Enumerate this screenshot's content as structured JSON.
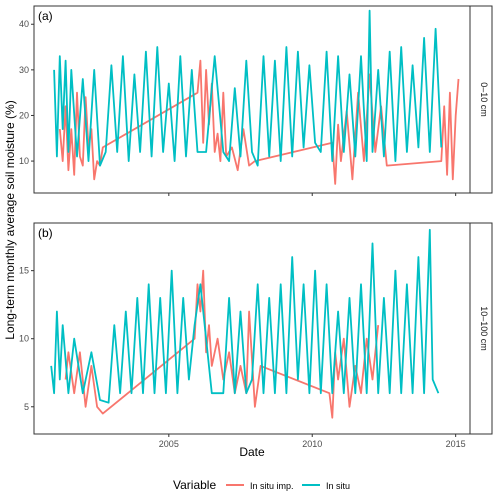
{
  "colors": {
    "imputed": "#F8766D",
    "insitu": "#00BFC4",
    "axis_text": "#4d4d4d",
    "strip_bg": "#ffffff"
  },
  "figure": {
    "xlabel": "Date",
    "ylabel": "Long-term monthly average soil moisture (%)",
    "legend_title": "Variable",
    "legend": [
      {
        "label": "In situ imp.",
        "color_key": "imputed"
      },
      {
        "label": "In situ",
        "color_key": "insitu"
      }
    ]
  },
  "chart_data": [
    {
      "type": "line",
      "panel_label": "(a)",
      "strip_label": "0–10 cm",
      "xlim": [
        2000.3,
        2015.5
      ],
      "ylim": [
        3,
        44
      ],
      "x_ticks": [
        2005,
        2010,
        2015
      ],
      "y_ticks": [
        10,
        20,
        30,
        40
      ],
      "series": [
        {
          "name": "In situ imp.",
          "color_key": "imputed",
          "x": [
            2001.2,
            2001.3,
            2001.4,
            2001.5,
            2001.6,
            2001.7,
            2001.8,
            2001.9,
            2002.0,
            2002.1,
            2002.2,
            2002.3,
            2002.4,
            2002.5,
            2002.6,
            2002.7,
            2006.0,
            2006.1,
            2006.2,
            2006.3,
            2006.4,
            2006.5,
            2006.6,
            2006.7,
            2006.8,
            2006.9,
            2007.0,
            2007.2,
            2007.4,
            2007.6,
            2007.8,
            2008.0,
            2010.7,
            2010.8,
            2010.9,
            2011.0,
            2011.2,
            2011.4,
            2011.6,
            2011.8,
            2012.0,
            2012.2,
            2012.4,
            2012.6,
            2014.5,
            2014.6,
            2014.7,
            2014.8,
            2014.9,
            2015.0,
            2015.1
          ],
          "y": [
            17,
            10,
            22,
            8,
            17,
            7,
            25,
            11,
            9,
            24,
            13,
            17,
            6,
            10,
            9,
            13,
            25,
            32,
            14,
            30,
            18,
            27,
            12,
            16,
            10,
            25,
            11,
            13,
            8,
            17,
            9,
            10,
            14,
            5,
            18,
            10,
            21,
            6,
            25,
            10,
            29,
            12,
            22,
            9,
            10,
            22,
            7,
            25,
            6,
            20,
            28
          ]
        },
        {
          "name": "In situ",
          "color_key": "insitu",
          "x": [
            2001.0,
            2001.1,
            2001.2,
            2001.3,
            2001.4,
            2001.5,
            2001.6,
            2001.8,
            2002.0,
            2002.2,
            2002.4,
            2002.6,
            2002.8,
            2003.0,
            2003.2,
            2003.4,
            2003.6,
            2003.8,
            2004.0,
            2004.2,
            2004.4,
            2004.6,
            2004.8,
            2005.0,
            2005.2,
            2005.4,
            2005.6,
            2005.8,
            2006.0,
            2006.3,
            2006.6,
            2006.9,
            2007.1,
            2007.3,
            2007.5,
            2007.7,
            2007.9,
            2008.1,
            2008.3,
            2008.5,
            2008.7,
            2008.9,
            2009.1,
            2009.3,
            2009.5,
            2009.7,
            2009.9,
            2010.1,
            2010.3,
            2010.5,
            2010.7,
            2010.9,
            2011.1,
            2011.3,
            2011.5,
            2011.7,
            2011.9,
            2012.0,
            2012.1,
            2012.3,
            2012.5,
            2012.7,
            2012.9,
            2013.1,
            2013.3,
            2013.5,
            2013.7,
            2013.9,
            2014.1,
            2014.3,
            2014.5
          ],
          "y": [
            30,
            11,
            33,
            17,
            32,
            12,
            30,
            11,
            28,
            10,
            30,
            9,
            12,
            31,
            12,
            33,
            10,
            29,
            12,
            34,
            11,
            35,
            12,
            27,
            10,
            33,
            11,
            30,
            12,
            12,
            33,
            12,
            10,
            26,
            11,
            32,
            12,
            9,
            33,
            11,
            32,
            10,
            35,
            11,
            34,
            13,
            31,
            14,
            12,
            34,
            10,
            33,
            12,
            29,
            11,
            33,
            10,
            43,
            12,
            30,
            11,
            34,
            10,
            35,
            12,
            31,
            13,
            37,
            12,
            39,
            13
          ]
        }
      ]
    },
    {
      "type": "line",
      "panel_label": "(b)",
      "strip_label": "10–100 cm",
      "xlim": [
        2000.3,
        2015.5
      ],
      "ylim": [
        3,
        18.5
      ],
      "x_ticks": [
        2005,
        2010,
        2015
      ],
      "y_ticks": [
        5,
        10,
        15
      ],
      "series": [
        {
          "name": "In situ imp.",
          "color_key": "imputed",
          "x": [
            2001.4,
            2001.5,
            2001.7,
            2001.9,
            2002.1,
            2002.3,
            2002.5,
            2002.7,
            2005.9,
            2006.0,
            2006.1,
            2006.2,
            2006.3,
            2006.4,
            2006.5,
            2006.7,
            2006.9,
            2007.1,
            2007.3,
            2007.5,
            2007.7,
            2007.8,
            2008.0,
            2008.2,
            2010.6,
            2010.7,
            2010.8,
            2010.9,
            2011.1,
            2011.3,
            2011.5,
            2011.7,
            2011.9,
            2012.1,
            2012.3
          ],
          "y": [
            7,
            9,
            6,
            9,
            5,
            8,
            5,
            4.5,
            10,
            14,
            12,
            15,
            9,
            11,
            8,
            10,
            7,
            9,
            6,
            8,
            6,
            12,
            5,
            8,
            6,
            4.2,
            9,
            7,
            10,
            5,
            8,
            6,
            10,
            7,
            11
          ]
        },
        {
          "name": "In situ",
          "color_key": "insitu",
          "x": [
            2000.9,
            2001.0,
            2001.1,
            2001.2,
            2001.3,
            2001.5,
            2001.7,
            2002.0,
            2002.3,
            2002.6,
            2002.9,
            2003.1,
            2003.3,
            2003.5,
            2003.7,
            2003.9,
            2004.1,
            2004.3,
            2004.5,
            2004.7,
            2004.9,
            2005.1,
            2005.3,
            2005.5,
            2005.7,
            2005.9,
            2006.1,
            2006.5,
            2006.9,
            2007.1,
            2007.3,
            2007.5,
            2007.7,
            2007.9,
            2008.1,
            2008.3,
            2008.5,
            2008.7,
            2008.9,
            2009.1,
            2009.3,
            2009.5,
            2009.7,
            2009.9,
            2010.1,
            2010.3,
            2010.5,
            2010.7,
            2010.9,
            2011.1,
            2011.3,
            2011.5,
            2011.7,
            2011.9,
            2012.1,
            2012.3,
            2012.5,
            2012.7,
            2012.9,
            2013.1,
            2013.3,
            2013.5,
            2013.7,
            2013.9,
            2014.1,
            2014.2,
            2014.4
          ],
          "y": [
            8,
            6,
            12,
            7,
            11,
            6,
            10,
            6,
            9,
            5.5,
            5.3,
            11,
            6,
            12,
            6,
            13,
            6,
            14,
            6,
            13,
            6,
            15,
            6,
            13,
            7,
            11,
            14,
            6,
            6,
            13,
            6,
            12,
            6,
            7,
            14,
            6,
            13,
            6,
            14,
            6,
            16,
            7,
            14,
            6,
            15,
            6,
            14,
            6,
            12,
            6,
            13,
            6,
            14,
            6,
            17,
            6,
            13,
            6,
            15,
            6,
            14,
            6,
            16,
            6,
            18,
            7,
            6
          ]
        }
      ]
    }
  ]
}
